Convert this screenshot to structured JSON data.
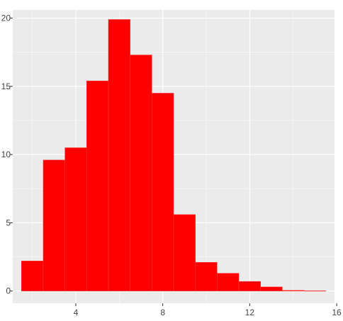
{
  "chart_data": {
    "type": "bar",
    "subtype": "histogram",
    "bin_width": 1,
    "bins": [
      {
        "x0": 1.5,
        "x1": 2.5,
        "value": 2.2
      },
      {
        "x0": 2.5,
        "x1": 3.5,
        "value": 9.6
      },
      {
        "x0": 3.5,
        "x1": 4.5,
        "value": 10.5
      },
      {
        "x0": 4.5,
        "x1": 5.5,
        "value": 15.4
      },
      {
        "x0": 5.5,
        "x1": 6.5,
        "value": 19.9
      },
      {
        "x0": 6.5,
        "x1": 7.5,
        "value": 17.3
      },
      {
        "x0": 7.5,
        "x1": 8.5,
        "value": 14.5
      },
      {
        "x0": 8.5,
        "x1": 9.5,
        "value": 5.6
      },
      {
        "x0": 9.5,
        "x1": 10.5,
        "value": 2.1
      },
      {
        "x0": 10.5,
        "x1": 11.5,
        "value": 1.3
      },
      {
        "x0": 11.5,
        "x1": 12.5,
        "value": 0.7
      },
      {
        "x0": 12.5,
        "x1": 13.5,
        "value": 0.3
      },
      {
        "x0": 13.5,
        "x1": 14.5,
        "value": 0.05
      },
      {
        "x0": 14.5,
        "x1": 15.5,
        "value": 0.02
      }
    ],
    "xlim": [
      1.1,
      15.9
    ],
    "ylim": [
      -0.9,
      20.6
    ],
    "x_ticks": [
      4,
      8,
      12,
      16
    ],
    "x_tick_labels": [
      "4",
      "8",
      "12",
      "16"
    ],
    "y_ticks": [
      0,
      5,
      10,
      15,
      20
    ],
    "y_tick_labels": [
      "0",
      "5",
      "10",
      "15",
      "20"
    ],
    "title": "",
    "xlabel": "",
    "ylabel": "",
    "bar_color": "#ff0000",
    "background_color": "#ebebeb",
    "grid": true,
    "grid_color": "#ffffff",
    "legend": "none"
  }
}
